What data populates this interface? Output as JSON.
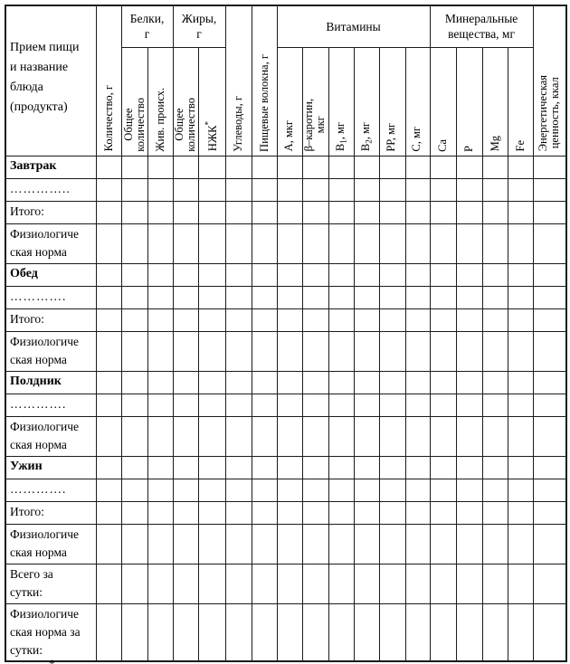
{
  "header": {
    "meal_col": "Прием пищи\nи название\nблюда\n(продукта)",
    "quantity": "Количество, г",
    "proteins_group": "Белки,\nг",
    "fats_group": "Жиры,\nг",
    "proteins_total": "Общее\nколичество",
    "proteins_animal": "Жив. происх.",
    "fats_total": "Общее\nколичество",
    "fats_nzhk": "НЖК",
    "fats_nzhk_note": "*",
    "carbs": "Углеводы, г",
    "fiber": "Пищевые волокна, г",
    "vitamins_group": "Витамины",
    "vitamins": [
      {
        "main": "А, мкг",
        "sub": "",
        "rest": ""
      },
      {
        "main": "β–каротин,\nмкг",
        "sub": "",
        "rest": ""
      },
      {
        "main": "В",
        "sub": "1",
        "rest": ", мг"
      },
      {
        "main": "В",
        "sub": "2",
        "rest": ", мг"
      },
      {
        "main": "РР, мг",
        "sub": "",
        "rest": ""
      },
      {
        "main": "С, мг",
        "sub": "",
        "rest": ""
      }
    ],
    "minerals_group": "Минеральные\nвещества, мг",
    "minerals": [
      "Са",
      "Р",
      "Mg",
      "Fe"
    ],
    "energy": "Энергетическая\nценность, ккал"
  },
  "rows": [
    {
      "label": "Завтрак",
      "kind": "meal"
    },
    {
      "label": "…………..",
      "kind": "dots"
    },
    {
      "label": "Итого:",
      "kind": "total"
    },
    {
      "label": "Физиологиче\nская норма",
      "kind": "norm"
    },
    {
      "label": "Обед",
      "kind": "meal"
    },
    {
      "label": "………….",
      "kind": "dots"
    },
    {
      "label": "Итого:",
      "kind": "total"
    },
    {
      "label": "Физиологиче\nская норма",
      "kind": "norm"
    },
    {
      "label": "Полдник",
      "kind": "meal"
    },
    {
      "label": "………….",
      "kind": "dots"
    },
    {
      "label": "Физиологиче\nская норма",
      "kind": "norm"
    },
    {
      "label": "Ужин",
      "kind": "meal"
    },
    {
      "label": "………….",
      "kind": "dots"
    },
    {
      "label": "Итого:",
      "kind": "total"
    },
    {
      "label": "Физиологиче\nская норма",
      "kind": "norm"
    },
    {
      "label": "Всего за\nсутки:",
      "kind": "summary"
    },
    {
      "label": "Физиологиче\nская норма за\nсутки:",
      "kind": "norm-summary"
    }
  ],
  "footnote_fragment": "*"
}
